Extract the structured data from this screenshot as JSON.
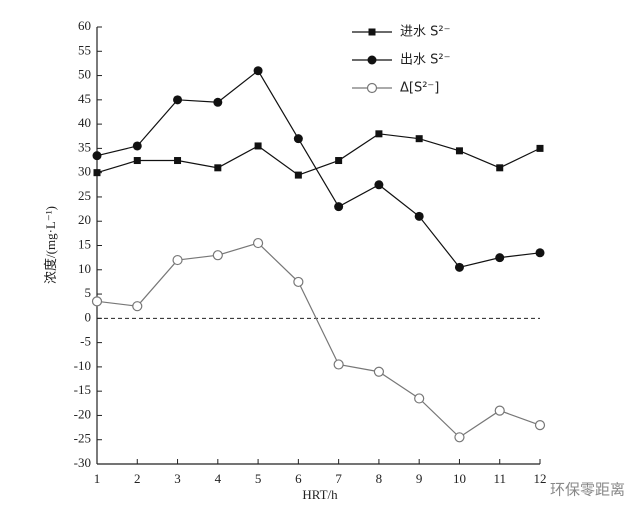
{
  "chart_data": {
    "type": "line",
    "x_label": "HRT/h",
    "y_label": "浓度/(mg·L⁻¹)",
    "x": [
      1,
      2,
      3,
      4,
      5,
      6,
      7,
      8,
      9,
      10,
      11,
      12
    ],
    "xlim": [
      1,
      12
    ],
    "xticks": [
      1,
      2,
      3,
      4,
      5,
      6,
      7,
      8,
      9,
      10,
      11,
      12
    ],
    "ylim": [
      -30,
      60
    ],
    "yticks": [
      -30,
      -25,
      -20,
      -15,
      -10,
      -5,
      0,
      5,
      10,
      15,
      20,
      25,
      30,
      35,
      40,
      45,
      50,
      55,
      60
    ],
    "reference_line": 0,
    "legend": "upper right",
    "series": [
      {
        "name": "进水 S²⁻",
        "color": "#111111",
        "marker": "square",
        "values": [
          30,
          32.5,
          32.5,
          31,
          35.5,
          29.5,
          32.5,
          38,
          37,
          34.5,
          31,
          35
        ]
      },
      {
        "name": "出水 S²⁻",
        "color": "#111111",
        "marker": "circle",
        "values": [
          33.5,
          35.5,
          45,
          44.5,
          51,
          37,
          23,
          27.5,
          21,
          10.5,
          12.5,
          13.5
        ]
      },
      {
        "name": "Δ[S²⁻]",
        "color": "#777777",
        "marker": "open-circle",
        "values": [
          3.5,
          2.5,
          12,
          13,
          15.5,
          7.5,
          -9.5,
          -11,
          -16.5,
          -24.5,
          -19,
          -22
        ]
      }
    ],
    "watermark": "环保零距离"
  }
}
